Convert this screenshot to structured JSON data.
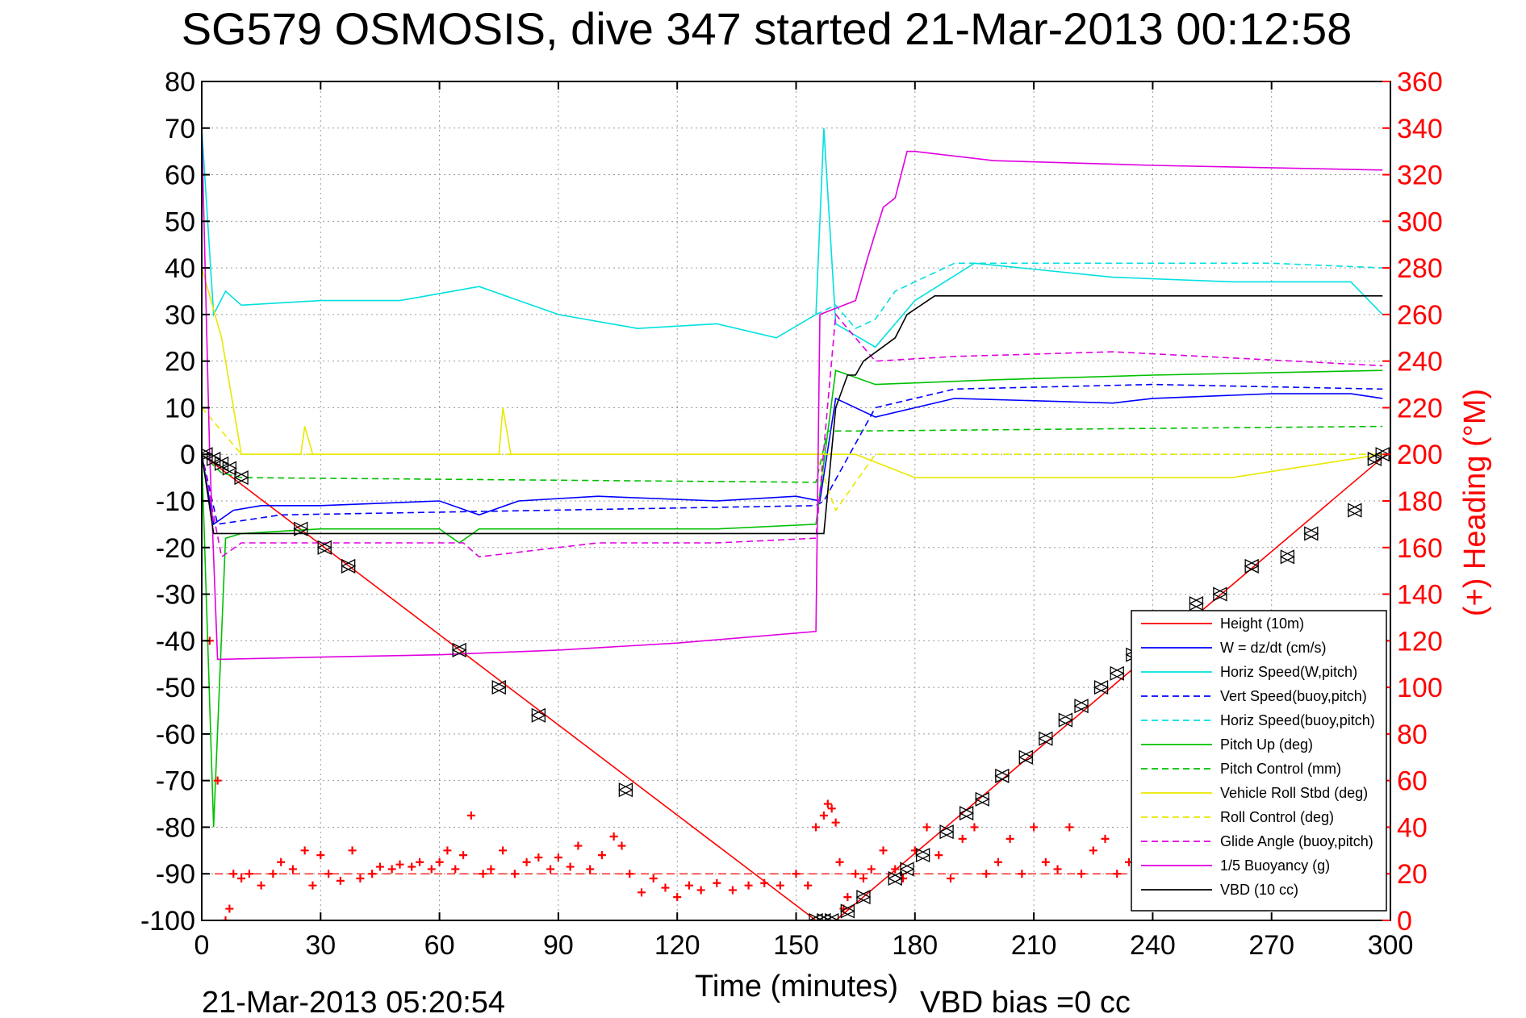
{
  "chart_data": {
    "type": "line",
    "title": "SG579 OSMOSIS, dive 347 started 21-Mar-2013 00:12:58",
    "xlabel": "Time (minutes)",
    "ylabel_right": "(+) Heading (°M)",
    "footer_left": "21-Mar-2013 05:20:54",
    "footer_right": "VBD bias =0 cc",
    "xlim": [
      0,
      300
    ],
    "ylim_left": [
      -100,
      80
    ],
    "ylim_right": [
      0,
      360
    ],
    "x_ticks": [
      "0",
      "30",
      "60",
      "90",
      "120",
      "150",
      "180",
      "210",
      "240",
      "270",
      "300"
    ],
    "y_ticks_left": [
      "-100",
      "-90",
      "-80",
      "-70",
      "-60",
      "-50",
      "-40",
      "-30",
      "-20",
      "-10",
      "0",
      "10",
      "20",
      "30",
      "40",
      "50",
      "60",
      "70",
      "80"
    ],
    "y_ticks_right": [
      "0",
      "20",
      "40",
      "60",
      "80",
      "100",
      "120",
      "140",
      "160",
      "180",
      "200",
      "220",
      "240",
      "260",
      "280",
      "300",
      "320",
      "340",
      "360"
    ],
    "grid": true,
    "legend_position": "bottom-right",
    "colors": {
      "left_axis": "#000000",
      "right_axis": "#ff0000"
    },
    "series": [
      {
        "name": "Height (10m)",
        "color": "#ff0000",
        "dash": "solid",
        "x": [
          0,
          155,
          158,
          160,
          299
        ],
        "y": [
          0,
          -100,
          -100,
          -100,
          0
        ]
      },
      {
        "name": "W = dz/dt (cm/s)",
        "color": "#0000ff",
        "dash": "solid",
        "x": [
          0,
          3,
          8,
          15,
          30,
          60,
          70,
          80,
          100,
          130,
          150,
          156,
          160,
          170,
          190,
          230,
          240,
          270,
          290,
          298
        ],
        "y": [
          0,
          -15,
          -12,
          -11,
          -11,
          -10,
          -13,
          -10,
          -9,
          -10,
          -9,
          -10,
          12,
          8,
          12,
          11,
          12,
          13,
          13,
          12
        ]
      },
      {
        "name": "Horiz Speed(W,pitch)",
        "color": "#00e0e0",
        "dash": "solid",
        "x": [
          0,
          3,
          6,
          10,
          30,
          50,
          70,
          90,
          110,
          130,
          145,
          155,
          157,
          160,
          170,
          180,
          195,
          230,
          260,
          290,
          298
        ],
        "y": [
          70,
          30,
          35,
          32,
          33,
          33,
          36,
          30,
          27,
          28,
          25,
          30,
          70,
          28,
          23,
          33,
          41,
          38,
          37,
          37,
          30
        ]
      },
      {
        "name": "Vert Speed(buoy,pitch)",
        "color": "#0000ff",
        "dash": "dashed",
        "x": [
          0,
          4,
          20,
          155,
          157,
          170,
          190,
          240,
          298
        ],
        "y": [
          0,
          -15,
          -13,
          -11,
          -10,
          10,
          14,
          15,
          14
        ]
      },
      {
        "name": "Horiz Speed(buoy,pitch)",
        "color": "#00e0e0",
        "dash": "dashed",
        "x": [
          155,
          160,
          165,
          170,
          175,
          180,
          190,
          230,
          270,
          298
        ],
        "y": [
          30,
          32,
          27,
          29,
          35,
          37,
          41,
          41,
          41,
          40
        ]
      },
      {
        "name": "Pitch Up (deg)",
        "color": "#00c000",
        "dash": "solid",
        "x": [
          0,
          3,
          6,
          10,
          30,
          60,
          65,
          70,
          100,
          130,
          155,
          160,
          170,
          200,
          240,
          298
        ],
        "y": [
          0,
          -80,
          -18,
          -17,
          -16,
          -16,
          -19,
          -16,
          -16,
          -16,
          -15,
          18,
          15,
          16,
          17,
          18
        ]
      },
      {
        "name": "Pitch Control (mm)",
        "color": "#00c000",
        "dash": "dashed",
        "x": [
          0,
          5,
          10,
          155,
          158,
          165,
          298
        ],
        "y": [
          0,
          -4,
          -5,
          -6,
          5,
          5,
          6
        ]
      },
      {
        "name": "Vehicle Roll Stbd (deg)",
        "color": "#e8e800",
        "dash": "solid",
        "x": [
          0,
          5,
          10,
          25,
          26,
          28,
          75,
          76,
          78,
          155,
          165,
          180,
          220,
          260,
          298
        ],
        "y": [
          40,
          25,
          0,
          0,
          6,
          0,
          0,
          10,
          0,
          0,
          0,
          -5,
          -5,
          -5,
          0
        ]
      },
      {
        "name": "Roll Control (deg)",
        "color": "#e8e800",
        "dash": "dashed",
        "x": [
          0,
          10,
          155,
          160,
          170,
          298
        ],
        "y": [
          10,
          0,
          0,
          -12,
          0,
          0
        ]
      },
      {
        "name": "Glide Angle (buoy,pitch)",
        "color": "#e000e0",
        "dash": "dashed",
        "x": [
          0,
          5,
          10,
          66,
          70,
          100,
          130,
          155,
          160,
          170,
          190,
          230,
          298
        ],
        "y": [
          0,
          -22,
          -19,
          -19,
          -22,
          -19,
          -19,
          -18,
          30,
          20,
          21,
          22,
          19
        ]
      },
      {
        "name": "1/5 Buoyancy (g)",
        "color": "#e000e0",
        "dash": "solid",
        "x": [
          0,
          2,
          4,
          30,
          60,
          90,
          120,
          155,
          156,
          165,
          168,
          172,
          175,
          178,
          180,
          200,
          240,
          298
        ],
        "y": [
          70,
          0,
          -44,
          -43.5,
          -43,
          -42,
          -40.5,
          -38,
          30,
          33,
          42,
          53,
          55,
          65,
          65,
          63,
          62,
          61
        ]
      },
      {
        "name": "VBD (10 cc)",
        "color": "#000000",
        "dash": "solid",
        "x": [
          0,
          3,
          155,
          157,
          160,
          163,
          165,
          167,
          175,
          178,
          185,
          298
        ],
        "y": [
          0,
          -17,
          -17,
          -17,
          10,
          17,
          17,
          20,
          25,
          30,
          34,
          34
        ]
      }
    ],
    "heading_series": {
      "name": "(+) Heading (°M)",
      "color": "#ff0000",
      "marker": "+",
      "axis": "right",
      "x": [
        0,
        2,
        4,
        6,
        7,
        8,
        10,
        12,
        15,
        18,
        20,
        23,
        26,
        28,
        30,
        32,
        35,
        38,
        40,
        43,
        45,
        48,
        50,
        53,
        55,
        58,
        60,
        62,
        64,
        66,
        68,
        71,
        73,
        76,
        79,
        82,
        85,
        88,
        90,
        93,
        95,
        98,
        101,
        104,
        106,
        108,
        111,
        114,
        117,
        120,
        123,
        126,
        130,
        134,
        138,
        142,
        146,
        150,
        153,
        155,
        157,
        158,
        159,
        160,
        161,
        162,
        163,
        165,
        167,
        169,
        172,
        175,
        177,
        180,
        183,
        186,
        189,
        192,
        195,
        198,
        201,
        204,
        207,
        210,
        213,
        216,
        219,
        222,
        225,
        228,
        231,
        234,
        237,
        240,
        243,
        246,
        249,
        252,
        255,
        258,
        261,
        264,
        267,
        270,
        273,
        276,
        279,
        282,
        285,
        288,
        291,
        294,
        297
      ],
      "y": [
        180,
        120,
        60,
        0,
        5,
        20,
        18,
        20,
        15,
        20,
        25,
        22,
        30,
        15,
        28,
        20,
        17,
        30,
        18,
        20,
        23,
        22,
        24,
        23,
        25,
        22,
        25,
        30,
        22,
        28,
        45,
        20,
        22,
        30,
        20,
        25,
        27,
        22,
        27,
        23,
        32,
        22,
        28,
        36,
        32,
        20,
        12,
        18,
        14,
        10,
        15,
        13,
        16,
        13,
        15,
        16,
        15,
        20,
        15,
        40,
        45,
        50,
        48,
        42,
        25,
        5,
        10,
        20,
        18,
        22,
        30,
        22,
        18,
        30,
        40,
        28,
        18,
        35,
        40,
        20,
        25,
        35,
        20,
        40,
        25,
        22,
        40,
        20,
        30,
        35,
        20,
        25,
        40,
        25,
        35,
        25,
        40,
        22,
        35,
        28,
        40,
        25,
        30,
        35,
        20,
        30,
        40,
        25,
        35,
        30,
        20,
        25,
        30
      ]
    },
    "waypoints": {
      "name": "Height (10m)",
      "color": "#000000",
      "x": [
        1,
        3,
        5,
        7,
        10,
        25,
        31,
        37,
        65,
        75,
        85,
        107,
        155,
        157,
        159,
        163,
        167,
        175,
        178,
        182,
        188,
        193,
        197,
        202,
        208,
        213,
        218,
        222,
        227,
        231,
        235,
        240,
        245,
        251,
        257,
        265,
        274,
        280,
        291,
        296,
        298
      ],
      "y": [
        0,
        -1,
        -2,
        -3,
        -5,
        -16,
        -20,
        -24,
        -42,
        -50,
        -56,
        -72,
        -100,
        -100,
        -100,
        -98,
        -95,
        -91,
        -89,
        -86,
        -81,
        -77,
        -74,
        -69,
        -65,
        -61,
        -57,
        -54,
        -50,
        -47,
        -43,
        -40,
        -37,
        -32,
        -30,
        -24,
        -22,
        -17,
        -12,
        -1,
        0
      ]
    },
    "heading_ref_line": {
      "value": 20,
      "color": "#ff0000",
      "dash": "dashed"
    }
  }
}
